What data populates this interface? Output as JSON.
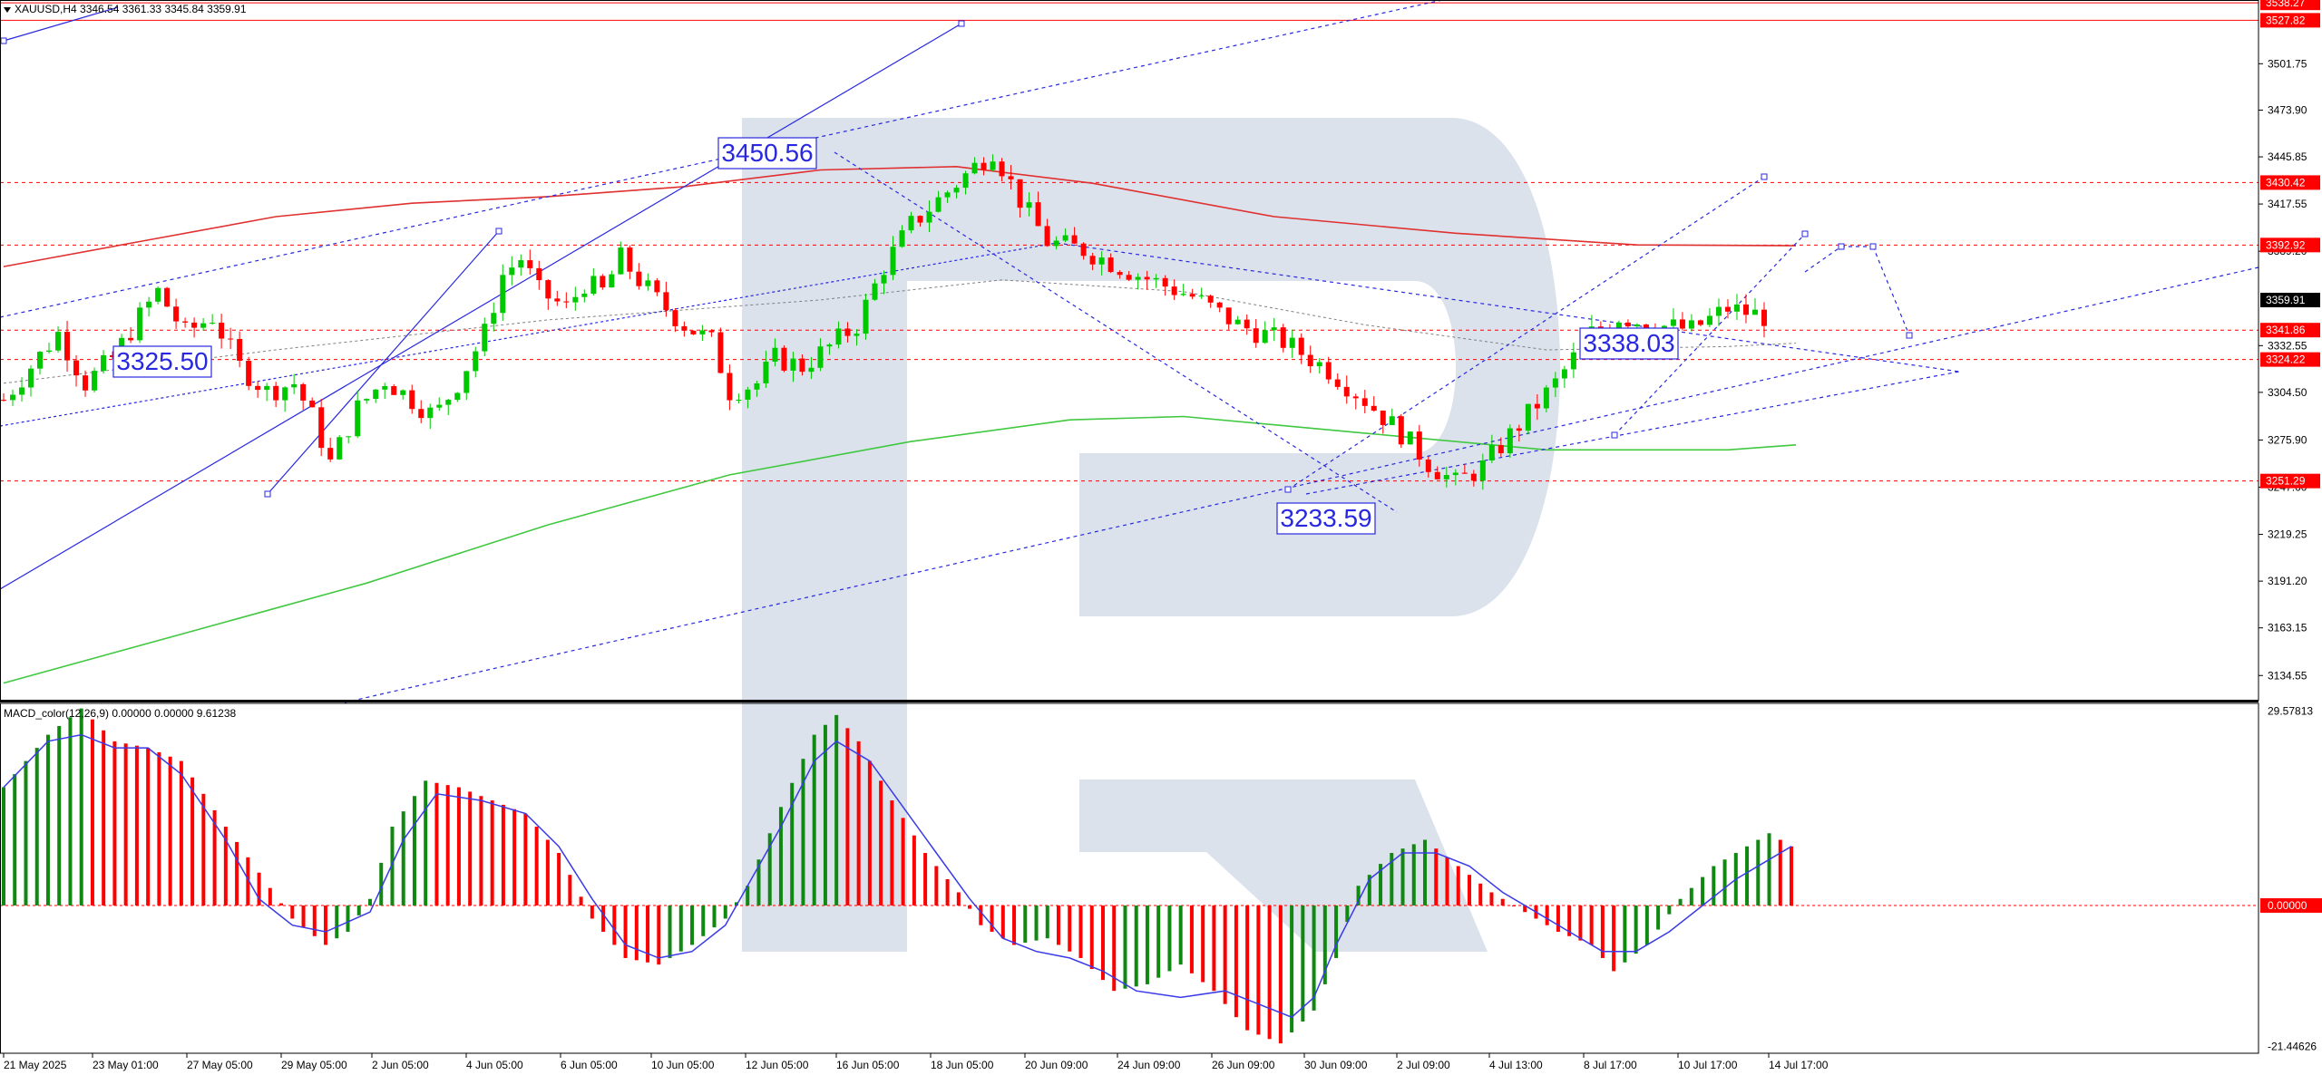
{
  "window": {
    "symbol_header": "XAUUSD,H4  3346.54 3361.33 3345.84 3359.91",
    "macd_header": "MACD_color(12,26,9) 0.00000 0.00000 9.61238"
  },
  "colors": {
    "bull": "#00c800",
    "bear": "#ff0000",
    "ma_red": "#e03030",
    "ma_green": "#40c840",
    "trend_blue": "#2828e0",
    "watermark": "#d5dde9",
    "macd_signal": "#3a3ae8"
  },
  "chart_data": [
    {
      "type": "candlestick",
      "title": "",
      "price_axis_ticks": [
        "3501.75",
        "3473.90",
        "3445.85",
        "3417.55",
        "3389.20",
        "3332.55",
        "3304.50",
        "3275.90",
        "3247.60",
        "3219.25",
        "3191.20",
        "3163.15",
        "3134.55"
      ],
      "price_labels": [
        {
          "label": "3538.27",
          "value": 3538.27,
          "style": "red"
        },
        {
          "label": "3527.82",
          "value": 3527.82,
          "style": "red"
        },
        {
          "label": "3430.42",
          "value": 3430.42,
          "style": "red"
        },
        {
          "label": "3392.92",
          "value": 3392.92,
          "style": "red"
        },
        {
          "label": "3359.91",
          "value": 3359.91,
          "style": "black"
        },
        {
          "label": "3341.86",
          "value": 3341.86,
          "style": "red"
        },
        {
          "label": "3324.22",
          "value": 3324.22,
          "style": "red"
        },
        {
          "label": "3251.29",
          "value": 3251.29,
          "style": "red"
        }
      ],
      "time_axis_labels": [
        "21 May 2025",
        "23 May 01:00",
        "27 May 05:00",
        "29 May 05:00",
        "2 Jun 05:00",
        "4 Jun 05:00",
        "6 Jun 05:00",
        "10 Jun 05:00",
        "12 Jun 05:00",
        "16 Jun 05:00",
        "18 Jun 05:00",
        "20 Jun 09:00",
        "24 Jun 09:00",
        "26 Jun 09:00",
        "30 Jun 09:00",
        "2 Jul 09:00",
        "4 Jul 13:00",
        "8 Jul 17:00",
        "10 Jul 17:00",
        "14 Jul 17:00"
      ],
      "annotations": [
        {
          "label": "3325.50",
          "value": 3325.5
        },
        {
          "label": "3450.56",
          "value": 3450.56
        },
        {
          "label": "3233.59",
          "value": 3233.59
        },
        {
          "label": "3338.03",
          "value": 3338.03
        }
      ],
      "y_range": [
        3120,
        3540
      ],
      "x_range": [
        0,
        240
      ],
      "close_path": [
        [
          0,
          3300
        ],
        [
          6,
          3320
        ],
        [
          12,
          3340
        ],
        [
          18,
          3310
        ],
        [
          24,
          3325
        ],
        [
          30,
          3350
        ],
        [
          34,
          3365
        ],
        [
          40,
          3340
        ],
        [
          46,
          3350
        ],
        [
          52,
          3320
        ],
        [
          58,
          3305
        ],
        [
          64,
          3310
        ],
        [
          68,
          3290
        ],
        [
          72,
          3262
        ],
        [
          78,
          3295
        ],
        [
          84,
          3312
        ],
        [
          90,
          3300
        ],
        [
          95,
          3290
        ],
        [
          100,
          3310
        ],
        [
          106,
          3340
        ],
        [
          110,
          3375
        ],
        [
          114,
          3385
        ],
        [
          118,
          3365
        ],
        [
          124,
          3355
        ],
        [
          128,
          3370
        ],
        [
          132,
          3365
        ],
        [
          136,
          3385
        ],
        [
          140,
          3372
        ],
        [
          144,
          3360
        ],
        [
          150,
          3345
        ],
        [
          156,
          3335
        ],
        [
          160,
          3305
        ],
        [
          166,
          3310
        ],
        [
          170,
          3325
        ],
        [
          176,
          3320
        ],
        [
          182,
          3332
        ],
        [
          188,
          3345
        ],
        [
          194,
          3380
        ],
        [
          200,
          3405
        ],
        [
          206,
          3420
        ],
        [
          212,
          3435
        ],
        [
          218,
          3450
        ],
        [
          224,
          3420
        ],
        [
          230,
          3395
        ],
        [
          238,
          3390
        ]
      ],
      "candle_count": 195,
      "moving_averages": [
        {
          "color_key": "ma_red",
          "points": [
            [
              0,
              3380
            ],
            [
              30,
              3395
            ],
            [
              60,
              3410
            ],
            [
              90,
              3418
            ],
            [
              120,
              3422
            ],
            [
              150,
              3428
            ],
            [
              180,
              3438
            ],
            [
              210,
              3440
            ],
            [
              240,
              3430
            ],
            [
              280,
              3410
            ],
            [
              320,
              3400
            ],
            [
              360,
              3393
            ],
            [
              395,
              3392.5
            ]
          ]
        },
        {
          "color_key": "ma_green",
          "points": [
            [
              0,
              3130
            ],
            [
              40,
              3160
            ],
            [
              80,
              3190
            ],
            [
              120,
              3225
            ],
            [
              160,
              3255
            ],
            [
              200,
              3275
            ],
            [
              235,
              3288
            ],
            [
              260,
              3290
            ],
            [
              300,
              3280
            ],
            [
              340,
              3270
            ],
            [
              380,
              3270
            ],
            [
              395,
              3273
            ]
          ]
        },
        {
          "color_key": "ma_grey",
          "points": [
            [
              0,
              3310
            ],
            [
              60,
              3330
            ],
            [
              120,
              3348
            ],
            [
              180,
              3360
            ],
            [
              220,
              3372
            ],
            [
              260,
              3365
            ],
            [
              300,
              3345
            ],
            [
              340,
              3330
            ],
            [
              380,
              3332
            ],
            [
              395,
              3334
            ]
          ]
        }
      ]
    },
    {
      "type": "bar",
      "title": "",
      "name": "MACD",
      "axis_ticks": [
        {
          "label": "29.57813",
          "value": 29.57813
        },
        {
          "label": "0.00000",
          "value": 0
        },
        {
          "label": "-21.44626",
          "value": -21.44626
        }
      ],
      "y_range": [
        -22.5,
        30.5
      ],
      "histogram_shape": [
        [
          0,
          18
        ],
        [
          8,
          26
        ],
        [
          14,
          30
        ],
        [
          20,
          25
        ],
        [
          26,
          24
        ],
        [
          32,
          22
        ],
        [
          40,
          12
        ],
        [
          46,
          5
        ],
        [
          52,
          -2
        ],
        [
          58,
          -6
        ],
        [
          62,
          -4
        ],
        [
          66,
          1
        ],
        [
          70,
          12
        ],
        [
          76,
          19
        ],
        [
          82,
          18
        ],
        [
          88,
          16
        ],
        [
          94,
          14
        ],
        [
          100,
          8
        ],
        [
          106,
          -2
        ],
        [
          112,
          -8
        ],
        [
          118,
          -9
        ],
        [
          124,
          -6
        ],
        [
          130,
          -2
        ],
        [
          134,
          3
        ],
        [
          140,
          15
        ],
        [
          146,
          26
        ],
        [
          150,
          29
        ],
        [
          154,
          25
        ],
        [
          160,
          16
        ],
        [
          166,
          8
        ],
        [
          172,
          2
        ],
        [
          176,
          -3
        ],
        [
          182,
          -6
        ],
        [
          188,
          -5
        ],
        [
          194,
          -8
        ],
        [
          200,
          -13
        ],
        [
          206,
          -12
        ],
        [
          212,
          -9
        ],
        [
          218,
          -13
        ],
        [
          224,
          -19
        ],
        [
          230,
          -21
        ],
        [
          236,
          -16
        ],
        [
          240,
          -8
        ],
        [
          244,
          3
        ],
        [
          250,
          8
        ],
        [
          256,
          10
        ],
        [
          262,
          6
        ],
        [
          268,
          2
        ],
        [
          274,
          -1
        ],
        [
          280,
          -4
        ],
        [
          286,
          -6
        ],
        [
          290,
          -10
        ],
        [
          296,
          -6
        ],
        [
          302,
          1
        ],
        [
          308,
          6
        ],
        [
          314,
          9
        ],
        [
          318,
          11
        ],
        [
          322,
          9
        ]
      ],
      "signal_line": [
        [
          0,
          18
        ],
        [
          8,
          25
        ],
        [
          14,
          26
        ],
        [
          20,
          24
        ],
        [
          26,
          24
        ],
        [
          32,
          20
        ],
        [
          40,
          10
        ],
        [
          46,
          1
        ],
        [
          52,
          -3
        ],
        [
          58,
          -4
        ],
        [
          66,
          -1
        ],
        [
          72,
          10
        ],
        [
          78,
          17
        ],
        [
          86,
          16
        ],
        [
          94,
          14
        ],
        [
          100,
          9
        ],
        [
          106,
          1
        ],
        [
          112,
          -6
        ],
        [
          118,
          -8
        ],
        [
          124,
          -7
        ],
        [
          130,
          -3
        ],
        [
          134,
          3
        ],
        [
          140,
          12
        ],
        [
          146,
          22
        ],
        [
          150,
          25
        ],
        [
          156,
          22
        ],
        [
          162,
          15
        ],
        [
          168,
          8
        ],
        [
          174,
          1
        ],
        [
          180,
          -5
        ],
        [
          186,
          -7
        ],
        [
          192,
          -8
        ],
        [
          198,
          -10
        ],
        [
          204,
          -13
        ],
        [
          212,
          -14
        ],
        [
          220,
          -13
        ],
        [
          226,
          -15
        ],
        [
          232,
          -17
        ],
        [
          236,
          -14
        ],
        [
          240,
          -6
        ],
        [
          246,
          4
        ],
        [
          252,
          8
        ],
        [
          258,
          8
        ],
        [
          264,
          6
        ],
        [
          270,
          2
        ],
        [
          276,
          -1
        ],
        [
          282,
          -4
        ],
        [
          288,
          -7
        ],
        [
          294,
          -7
        ],
        [
          300,
          -4
        ],
        [
          306,
          0
        ],
        [
          312,
          4
        ],
        [
          318,
          7
        ],
        [
          322,
          9
        ]
      ]
    }
  ]
}
